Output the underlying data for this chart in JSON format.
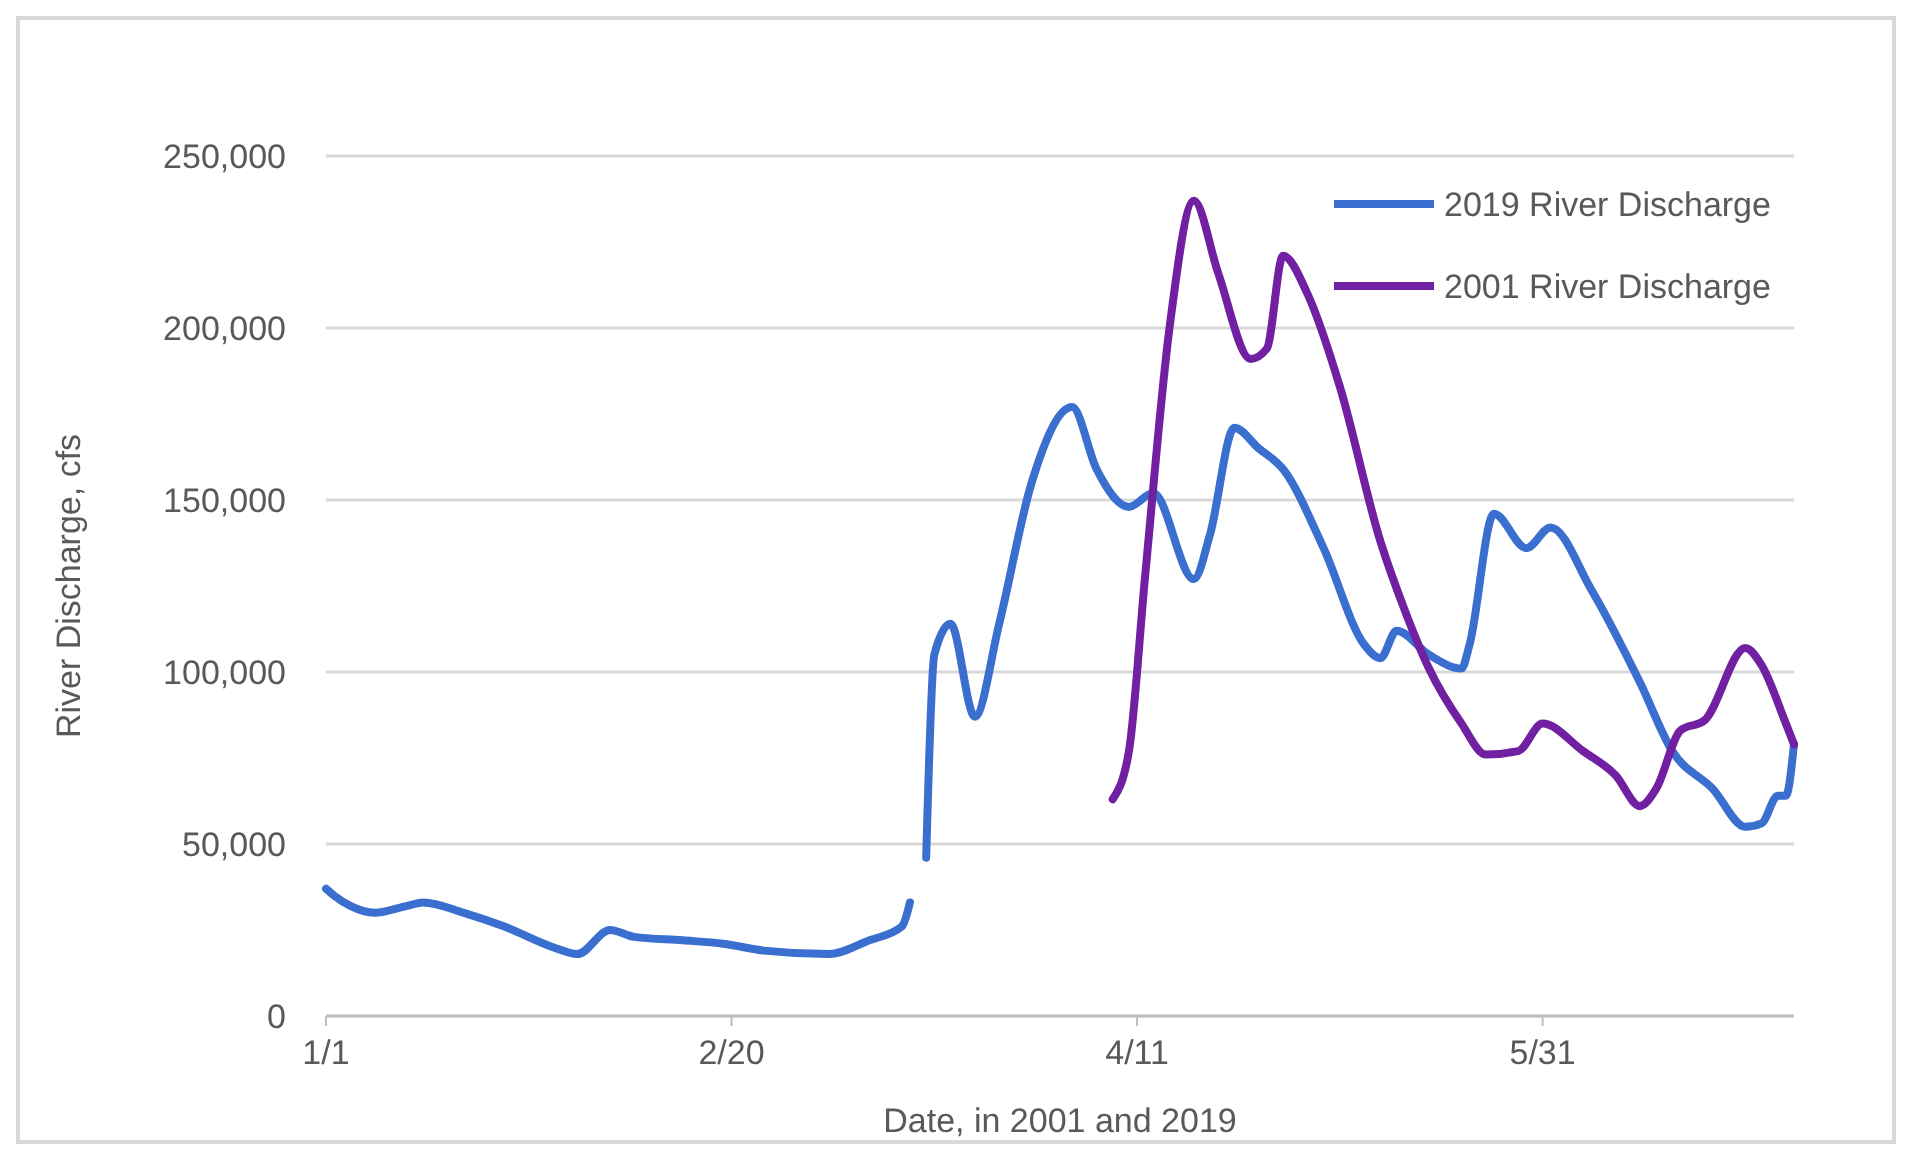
{
  "chart_data": {
    "type": "line",
    "xlabel": "Date, in 2001 and 2019",
    "ylabel": "River Discharge, cfs",
    "xlim": [
      "--01-01",
      "--07-01"
    ],
    "xticks": [
      {
        "value": "--01-01",
        "label": "1/1"
      },
      {
        "value": "--02-20",
        "label": "2/20"
      },
      {
        "value": "--04-11",
        "label": "4/11"
      },
      {
        "value": "--05-31",
        "label": "5/31"
      }
    ],
    "ylim": [
      0,
      250000
    ],
    "yticks": [
      0,
      {
        "value": 50000,
        "label": "50,000"
      },
      {
        "value": 100000,
        "label": "100,000"
      },
      {
        "value": 150000,
        "label": "150,000"
      },
      {
        "value": 200000,
        "label": "200,000"
      },
      {
        "value": 250000,
        "label": "250,000"
      }
    ],
    "grid": "y",
    "legend": "top right",
    "line_style": "solid",
    "marker": "none",
    "series": [
      {
        "name": "2019 River Discharge",
        "color": "#3a6fd0",
        "x": [
          "--01-01",
          "--01-02",
          "--01-04",
          "--01-07",
          "--01-11",
          "--01-13",
          "--01-18",
          "--01-23",
          "--01-29",
          "--02-01",
          "--02-05",
          "--02-08",
          "--02-14",
          "--02-19",
          "--02-24",
          "--03-04",
          "--03-09",
          "--03-13",
          "--03-14",
          "--03-15",
          "--03-16",
          "--03-17",
          "--03-19",
          "--03-22",
          "--03-25",
          "--03-29",
          "--04-03",
          "--04-06",
          "--04-10",
          "--04-13",
          "--04-18",
          "--04-20",
          "--04-23",
          "--04-26",
          "--04-29",
          "--05-04",
          "--05-09",
          "--05-11",
          "--05-13",
          "--05-17",
          "--05-21",
          "--05-22",
          "--05-25",
          "--05-29",
          "--06-01",
          "--06-06",
          "--06-12",
          "--06-16",
          "--06-21",
          "--06-25",
          "--06-27",
          "--06-29",
          "--06-30",
          "--07-01"
        ],
        "values": [
          37000,
          35000,
          32000,
          30000,
          32000,
          33000,
          30000,
          26000,
          20000,
          18000,
          25000,
          23000,
          22000,
          21000,
          19000,
          18000,
          22000,
          26000,
          33000,
          null,
          46000,
          105000,
          114000,
          87000,
          114000,
          155000,
          177000,
          159000,
          148000,
          152000,
          127000,
          140000,
          171000,
          165000,
          159000,
          136000,
          108000,
          104000,
          112000,
          105000,
          101000,
          108000,
          146000,
          136000,
          142000,
          124000,
          97000,
          77000,
          66000,
          55000,
          56000,
          64000,
          64000,
          79000
        ]
      },
      {
        "name": "2001 River Discharge",
        "color": "#7020a0",
        "x": [
          "--04-08",
          "--04-10",
          "--04-12",
          "--04-15",
          "--04-18",
          "--04-21",
          "--04-25",
          "--04-27",
          "--04-29",
          "--05-02",
          "--05-06",
          "--05-11",
          "--05-14",
          "--05-17",
          "--05-21",
          "--05-24",
          "--05-28",
          "--05-31",
          "--06-05",
          "--06-09",
          "--06-12",
          "--06-14",
          "--06-17",
          "--06-20",
          "--06-25",
          "--06-27",
          "--06-30",
          "--07-01"
        ],
        "values": [
          63000,
          77000,
          128000,
          200000,
          237000,
          216000,
          191000,
          194000,
          221000,
          210000,
          183000,
          138000,
          118000,
          101000,
          85000,
          76000,
          77000,
          85000,
          77000,
          70000,
          61000,
          66000,
          83000,
          86000,
          107000,
          102000,
          85000,
          79000
        ]
      }
    ]
  }
}
